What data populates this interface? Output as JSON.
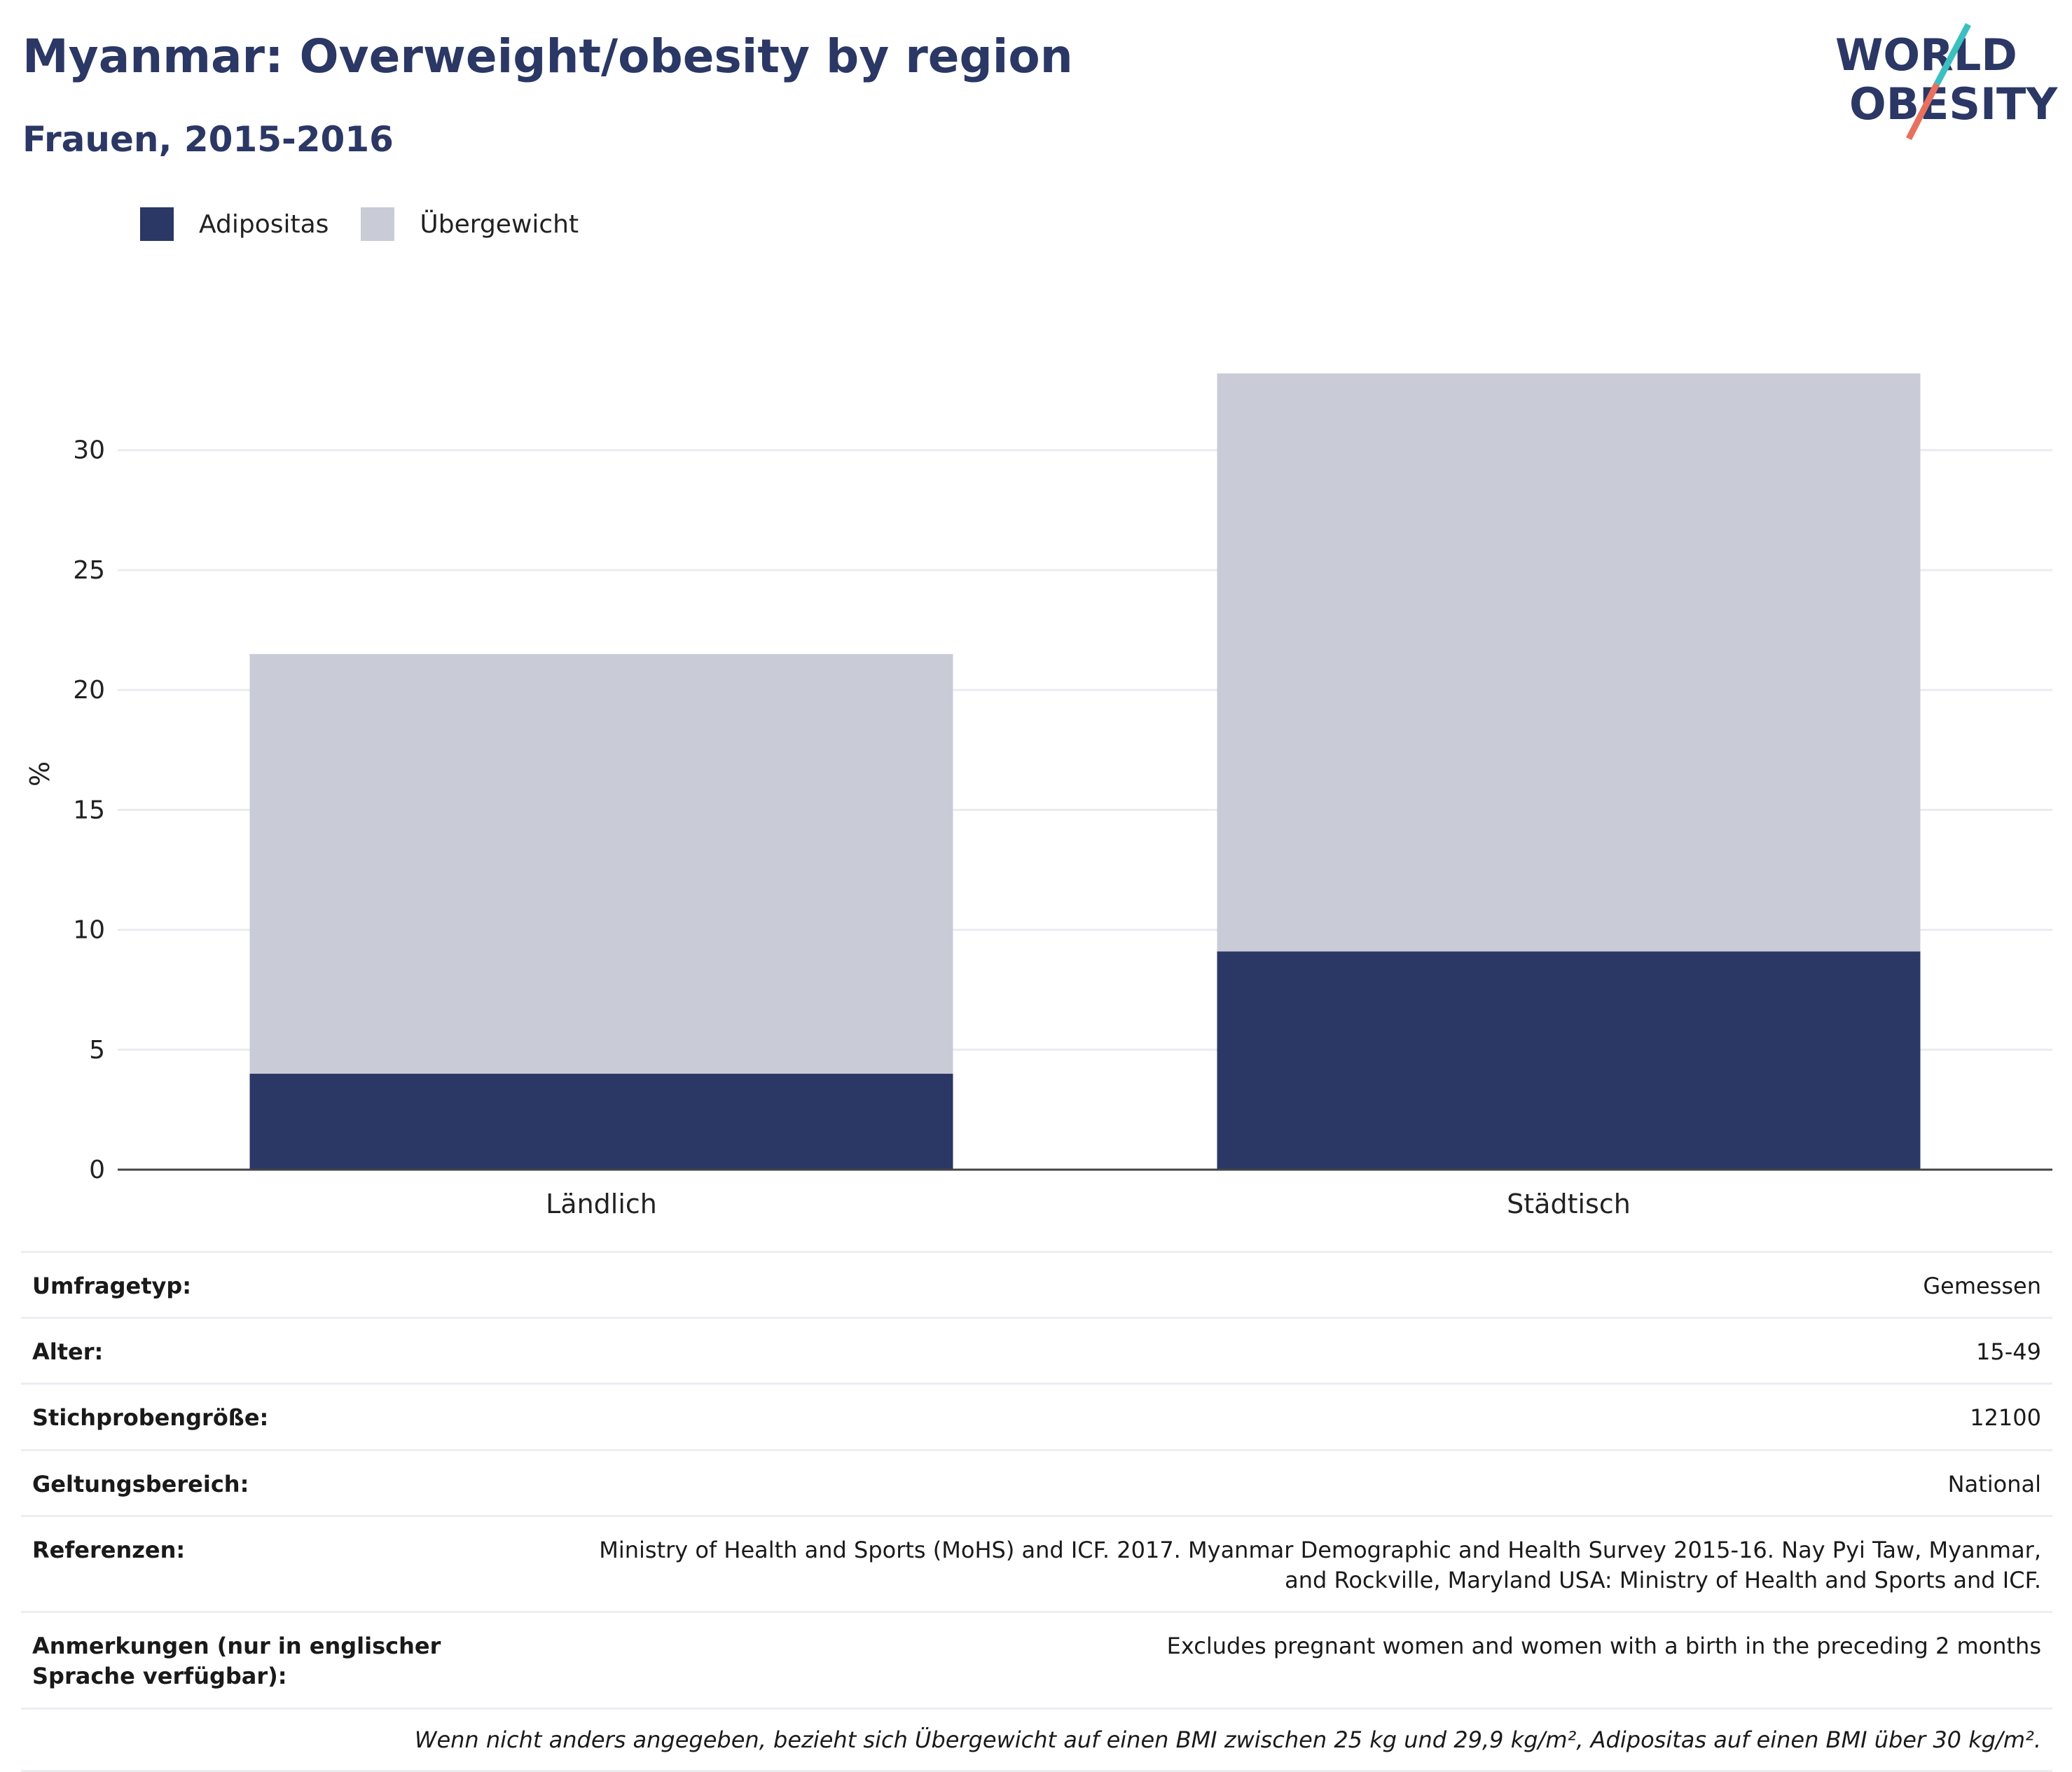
{
  "header": {
    "title": "Myanmar: Overweight/obesity by region",
    "subtitle": "Frauen, 2015-2016"
  },
  "logo": {
    "line1": "WORLD",
    "line2": "OBESITY"
  },
  "chart_data": {
    "type": "bar",
    "stacked": true,
    "categories": [
      "Ländlich",
      "Städtisch"
    ],
    "series": [
      {
        "name": "Adipositas",
        "color": "#2b3764",
        "values": [
          4.0,
          9.1
        ]
      },
      {
        "name": "Übergewicht",
        "color": "#c9ccd7",
        "values": [
          17.5,
          24.1
        ]
      }
    ],
    "ylabel": "%",
    "ylim": [
      0,
      33
    ],
    "yticks": [
      0,
      5,
      10,
      15,
      20,
      25,
      30
    ],
    "grid": true,
    "legend_position": "top-left"
  },
  "info": {
    "rows": [
      {
        "label": "Umfragetyp:",
        "value": "Gemessen"
      },
      {
        "label": "Alter:",
        "value": "15-49"
      },
      {
        "label": "Stichprobengröße:",
        "value": "12100"
      },
      {
        "label": "Geltungsbereich:",
        "value": "National"
      },
      {
        "label": "Referenzen:",
        "value": "Ministry of Health and Sports (MoHS) and ICF. 2017. Myanmar Demographic and Health Survey 2015-16. Nay Pyi Taw, Myanmar, and Rockville, Maryland USA: Ministry of Health and Sports and ICF."
      },
      {
        "label": "Anmerkungen (nur in englischer Sprache verfügbar):",
        "value": "Excludes pregnant women and women with a birth in the preceding 2 months"
      }
    ],
    "footnote": "Wenn nicht anders angegeben, bezieht sich Übergewicht auf einen BMI zwischen 25 kg und 29,9 kg/m², Adipositas auf einen BMI über 30 kg/m²."
  }
}
